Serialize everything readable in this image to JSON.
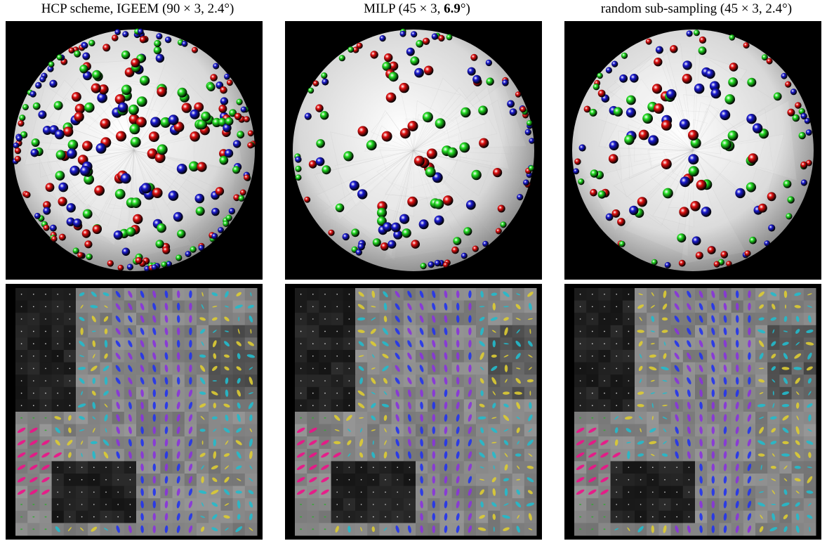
{
  "figure": {
    "columns": [
      {
        "id": "hcp",
        "caption_pre": "HCP scheme, IGEEM (90 × 3, ",
        "caption_angle": "2.4°",
        "caption_post": ")",
        "angle_bold": false,
        "sphere_image": "sphere-sampling-dense",
        "field_image": "tensor-field-glyphs"
      },
      {
        "id": "milp",
        "caption_pre": "MILP (45 × 3, ",
        "caption_angle": "6.9",
        "caption_post": "°)",
        "angle_bold": true,
        "sphere_image": "sphere-sampling-sparse",
        "field_image": "tensor-field-glyphs"
      },
      {
        "id": "random",
        "caption_pre": "random sub-sampling (45 × 3, ",
        "caption_angle": "2.4°",
        "caption_post": ")",
        "angle_bold": false,
        "sphere_image": "sphere-sampling-random",
        "field_image": "tensor-field-glyphs"
      }
    ],
    "colors": {
      "shell_red": "#e01010",
      "shell_green": "#22dd22",
      "shell_blue": "#1a1ad0",
      "sphere_face": "#e8e8e8",
      "background": "#000000",
      "glyph_blue": "#2233ee",
      "glyph_magenta": "#ee1188",
      "glyph_purple": "#8833dd",
      "glyph_yellow": "#ddcc33"
    }
  }
}
